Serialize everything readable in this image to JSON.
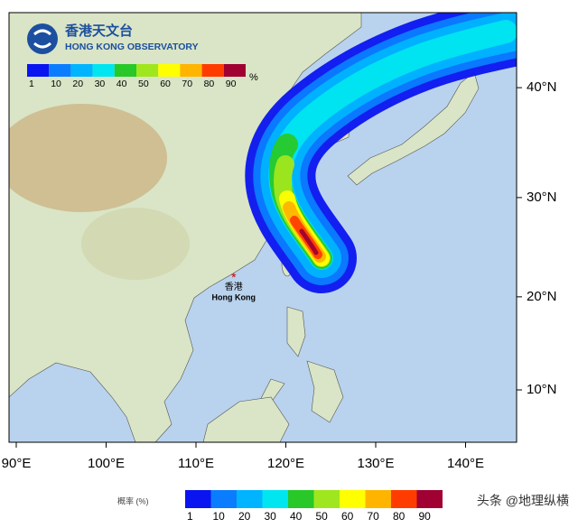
{
  "header": {
    "title_zh": "香港天文台",
    "title_en": "HONG KONG OBSERVATORY"
  },
  "map": {
    "lon_ticks": [
      {
        "value": 90,
        "label": "90°E"
      },
      {
        "value": 100,
        "label": "100°E"
      },
      {
        "value": 110,
        "label": "110°E"
      },
      {
        "value": 120,
        "label": "120°E"
      },
      {
        "value": 130,
        "label": "130°E"
      },
      {
        "value": 140,
        "label": "140°E"
      }
    ],
    "lat_ticks": [
      {
        "value": 10,
        "label": "10°N"
      },
      {
        "value": 20,
        "label": "20°N"
      },
      {
        "value": 30,
        "label": "30°N"
      },
      {
        "value": 40,
        "label": "40°N"
      }
    ],
    "marker": {
      "label_zh": "香港",
      "label_en": "Hong Kong"
    }
  },
  "legend": {
    "unit": "%",
    "title": "概率 (%)",
    "labels": [
      "1",
      "10",
      "20",
      "30",
      "40",
      "50",
      "60",
      "70",
      "80",
      "90"
    ],
    "colors": [
      "#0a14f0",
      "#0a7dff",
      "#00b4ff",
      "#00e6f0",
      "#28c828",
      "#a0e61e",
      "#ffff00",
      "#ffb400",
      "#ff3c00",
      "#a00032"
    ]
  },
  "watermark": "头条 @地理纵横"
}
